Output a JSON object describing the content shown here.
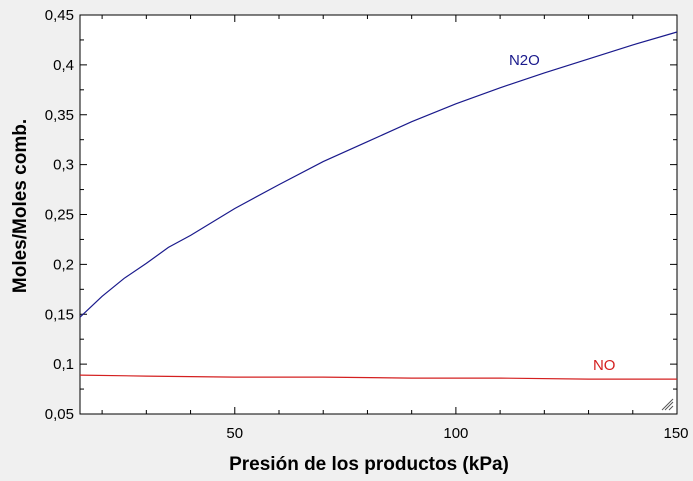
{
  "chart_data": {
    "type": "line",
    "xlabel": "Presión de los productos  (kPa)",
    "ylabel": "Moles/Moles comb.",
    "xlim": [
      15,
      150
    ],
    "ylim": [
      0.05,
      0.45
    ],
    "x_ticks": [
      50,
      100,
      150
    ],
    "y_ticks": [
      "0,05",
      "0,1",
      "0,15",
      "0,2",
      "0,25",
      "0,3",
      "0,35",
      "0,4",
      "0,45"
    ],
    "x_tick_labels": [
      "50",
      "100",
      "150"
    ],
    "grid": false,
    "series": [
      {
        "name": "N2O",
        "color": "#1a1a8c",
        "x": [
          15,
          20,
          25,
          30,
          35,
          40,
          50,
          60,
          70,
          80,
          90,
          100,
          110,
          120,
          130,
          140,
          150
        ],
        "y": [
          0.147,
          0.168,
          0.186,
          0.201,
          0.217,
          0.229,
          0.256,
          0.28,
          0.303,
          0.323,
          0.343,
          0.361,
          0.377,
          0.392,
          0.406,
          0.42,
          0.433
        ]
      },
      {
        "name": "NO",
        "color": "#d42020",
        "x": [
          15,
          30,
          50,
          70,
          90,
          110,
          130,
          150
        ],
        "y": [
          0.089,
          0.088,
          0.087,
          0.087,
          0.086,
          0.086,
          0.085,
          0.085
        ]
      }
    ]
  }
}
